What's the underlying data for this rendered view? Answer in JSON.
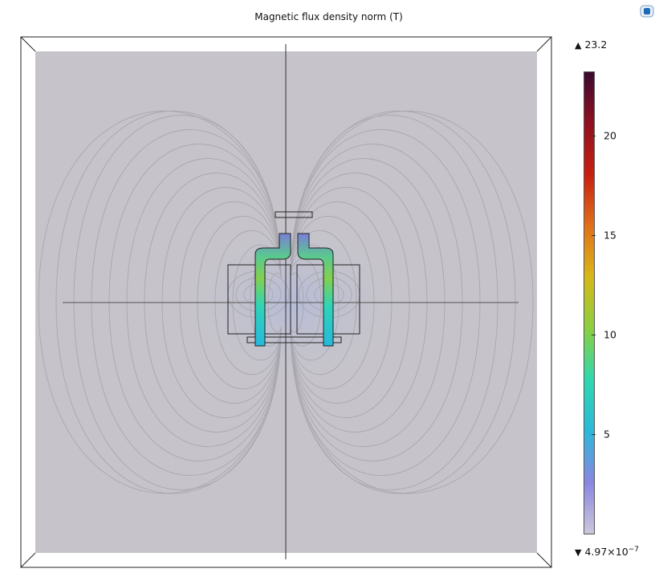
{
  "chart_data": {
    "type": "heatmap",
    "title": "Magnetic flux density norm (T)",
    "colorbar": {
      "max_label": "23.2",
      "min_label": "4.97×10",
      "min_exponent": "−7",
      "range": [
        4.97e-07,
        23.2
      ],
      "ticks": [
        {
          "value": 20,
          "label": "20"
        },
        {
          "value": 15,
          "label": "15"
        },
        {
          "value": 10,
          "label": "10"
        },
        {
          "value": 5,
          "label": "5"
        }
      ],
      "colormap": [
        "#ccc8dc",
        "#8a86e0",
        "#2cb8d8",
        "#2fd8b0",
        "#8ad040",
        "#d8b818",
        "#e07018",
        "#c82010",
        "#901020",
        "#3a0a30"
      ]
    },
    "field": {
      "background_value": "low (near 0)",
      "coil_field_peak": "about 8 T inside conductors"
    }
  },
  "colors": {
    "background_field": "#c6c4ca",
    "field_lines": "#a8a6ad",
    "geometry_edges": "#222222"
  },
  "icons": {
    "corner_logo": "app-logo-icon"
  }
}
